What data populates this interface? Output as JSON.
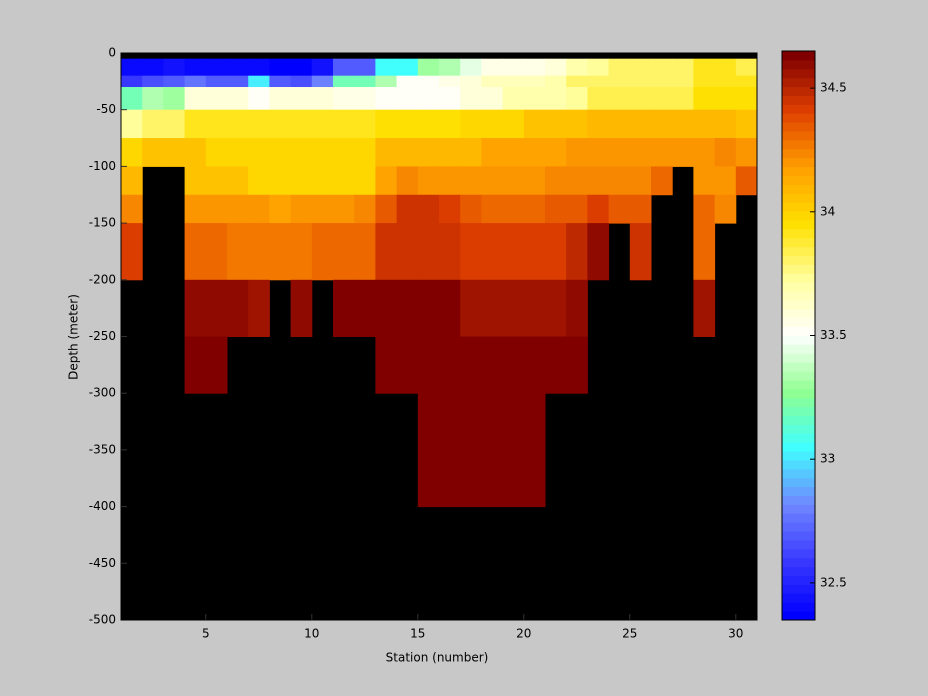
{
  "chart_data": {
    "type": "heatmap",
    "xlabel": "Station (number)",
    "ylabel": "Depth (meter)",
    "x": [
      1,
      2,
      3,
      4,
      5,
      6,
      7,
      8,
      9,
      10,
      11,
      12,
      13,
      14,
      15,
      16,
      17,
      18,
      19,
      20,
      21,
      22,
      23,
      24,
      25,
      26,
      27,
      28,
      29,
      30,
      31
    ],
    "y": [
      0,
      -5,
      -20,
      -30,
      -50,
      -75,
      -100,
      -125,
      -150,
      -200,
      -250,
      -300,
      -400,
      -500
    ],
    "z": [
      [
        null,
        null,
        null,
        null,
        null,
        null,
        null,
        null,
        null,
        null,
        null,
        null,
        null,
        null,
        null,
        null,
        null,
        null,
        null,
        null,
        null,
        null,
        null,
        null,
        null,
        null,
        null,
        null,
        null,
        null
      ],
      [
        32.4,
        32.4,
        32.45,
        32.4,
        32.4,
        32.4,
        32.4,
        32.35,
        32.35,
        32.45,
        32.7,
        32.7,
        33.05,
        33.05,
        33.3,
        33.35,
        33.45,
        33.55,
        33.55,
        33.55,
        33.6,
        33.7,
        33.75,
        33.8,
        33.8,
        33.8,
        33.8,
        33.9,
        33.9,
        33.85
      ],
      [
        32.6,
        32.65,
        32.7,
        32.75,
        32.7,
        32.7,
        33.0,
        32.7,
        32.65,
        32.8,
        33.2,
        33.2,
        33.35,
        33.5,
        33.5,
        33.55,
        33.6,
        33.65,
        33.65,
        33.65,
        33.7,
        33.8,
        33.8,
        33.8,
        33.8,
        33.8,
        33.8,
        33.9,
        33.9,
        33.9
      ],
      [
        33.2,
        33.35,
        33.3,
        33.6,
        33.6,
        33.6,
        33.5,
        33.6,
        33.6,
        33.6,
        33.55,
        33.55,
        33.5,
        33.5,
        33.5,
        33.5,
        33.6,
        33.6,
        33.7,
        33.7,
        33.7,
        33.75,
        33.85,
        33.85,
        33.85,
        33.85,
        33.85,
        33.95,
        33.95,
        33.95
      ],
      [
        33.75,
        33.8,
        33.8,
        33.9,
        33.9,
        33.9,
        33.9,
        33.9,
        33.9,
        33.9,
        33.9,
        33.9,
        33.95,
        33.95,
        33.95,
        33.95,
        34.0,
        34.0,
        34.0,
        34.05,
        34.05,
        34.05,
        34.1,
        34.1,
        34.1,
        34.1,
        34.1,
        34.1,
        34.1,
        34.05
      ],
      [
        34.0,
        34.05,
        34.05,
        34.05,
        34.0,
        34.0,
        34.0,
        34.0,
        34.0,
        34.0,
        34.0,
        34.0,
        34.1,
        34.1,
        34.1,
        34.1,
        34.1,
        34.15,
        34.15,
        34.15,
        34.15,
        34.2,
        34.2,
        34.2,
        34.2,
        34.2,
        34.2,
        34.2,
        34.25,
        34.2
      ],
      [
        34.1,
        null,
        null,
        34.05,
        34.05,
        34.05,
        34.0,
        34.0,
        34.0,
        34.0,
        34.0,
        34.0,
        34.15,
        34.25,
        34.2,
        34.2,
        34.2,
        34.2,
        34.2,
        34.2,
        34.25,
        34.25,
        34.25,
        34.25,
        34.25,
        34.3,
        null,
        34.2,
        34.2,
        34.35
      ],
      [
        34.25,
        null,
        null,
        34.2,
        34.2,
        34.2,
        34.2,
        34.15,
        34.2,
        34.2,
        34.2,
        34.22,
        34.35,
        34.45,
        34.45,
        34.4,
        34.35,
        34.3,
        34.3,
        34.3,
        34.35,
        34.35,
        34.4,
        34.35,
        34.35,
        null,
        null,
        34.3,
        34.25,
        null
      ],
      [
        34.4,
        null,
        null,
        34.3,
        34.3,
        34.28,
        34.28,
        34.28,
        34.28,
        34.3,
        34.3,
        34.3,
        34.45,
        34.45,
        34.45,
        34.45,
        34.42,
        34.42,
        34.42,
        34.42,
        34.42,
        34.5,
        34.6,
        null,
        34.45,
        null,
        null,
        34.3,
        null,
        null
      ],
      [
        null,
        null,
        null,
        34.6,
        34.6,
        34.6,
        34.55,
        null,
        34.6,
        null,
        34.62,
        34.62,
        34.62,
        34.62,
        34.62,
        34.62,
        34.57,
        34.57,
        34.57,
        34.57,
        34.57,
        34.6,
        null,
        null,
        null,
        null,
        null,
        34.55,
        null,
        null
      ],
      [
        null,
        null,
        null,
        34.65,
        34.65,
        null,
        null,
        null,
        null,
        null,
        null,
        null,
        34.65,
        34.65,
        34.65,
        34.65,
        34.65,
        34.65,
        34.65,
        34.65,
        34.65,
        34.65,
        null,
        null,
        null,
        null,
        null,
        null,
        null,
        null
      ],
      [
        null,
        null,
        null,
        null,
        null,
        null,
        null,
        null,
        null,
        null,
        null,
        null,
        null,
        null,
        34.65,
        34.65,
        34.65,
        34.65,
        34.65,
        34.65,
        null,
        null,
        null,
        null,
        null,
        null,
        null,
        null,
        null,
        null
      ],
      [
        null,
        null,
        null,
        null,
        null,
        null,
        null,
        null,
        null,
        null,
        null,
        null,
        null,
        null,
        null,
        null,
        null,
        null,
        null,
        null,
        null,
        null,
        null,
        null,
        null,
        null,
        null,
        null,
        null,
        null
      ]
    ],
    "xlim": [
      1,
      31
    ],
    "ylim": [
      -500,
      0
    ],
    "xticks": [
      5,
      10,
      15,
      20,
      25,
      30
    ],
    "yticks": [
      0,
      -50,
      -100,
      -150,
      -200,
      -250,
      -300,
      -350,
      -400,
      -450,
      -500
    ],
    "clim": [
      32.35,
      34.65
    ],
    "cticks": [
      32.5,
      33,
      33.5,
      34,
      34.5
    ],
    "colormap": [
      "#0000ff",
      "#3a3aff",
      "#7088ff",
      "#40ffff",
      "#90ff90",
      "#ffffff",
      "#ffffa0",
      "#ffe000",
      "#ff9f00",
      "#e04000",
      "#800000"
    ],
    "missing_color": "#000000"
  }
}
